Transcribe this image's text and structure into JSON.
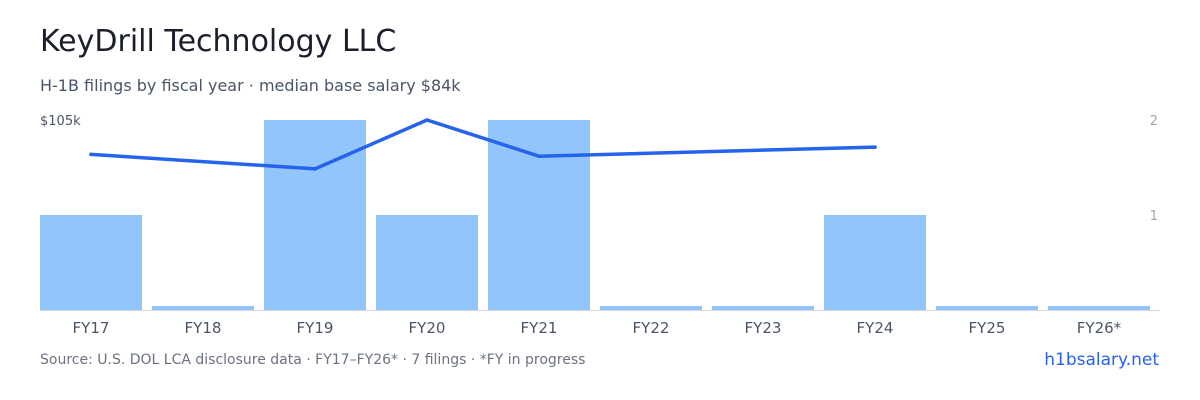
{
  "title": "KeyDrill Technology LLC",
  "subtitle": "H-1B filings by fiscal year · median base salary $84k",
  "footer": "Source: U.S. DOL LCA disclosure data · FY17–FY26* · 7 filings · *FY in progress",
  "site": "h1bsalary.net",
  "colors": {
    "bar": "#93c5fd",
    "line": "#2563eb",
    "axis_text": "#9ca3af",
    "tick_text": "#4b5563",
    "baseline": "#d1d5db"
  },
  "chart_data": {
    "type": "bar",
    "categories": [
      "FY17",
      "FY18",
      "FY19",
      "FY20",
      "FY21",
      "FY22",
      "FY23",
      "FY24",
      "FY25",
      "FY26*"
    ],
    "series": [
      {
        "type": "bar",
        "axis": "right",
        "values": [
          1,
          0,
          2,
          1,
          2,
          0,
          0,
          1,
          0,
          0
        ]
      },
      {
        "type": "line",
        "axis": "left",
        "values": [
          86000,
          null,
          78000,
          105000,
          85000,
          null,
          null,
          90000,
          null,
          null
        ]
      }
    ],
    "left_axis": {
      "ylim": [
        0,
        105000
      ],
      "top_label": "$105k"
    },
    "right_axis": {
      "ylim": [
        0,
        2
      ],
      "ticks": [
        "1",
        "2"
      ]
    },
    "legend": "none",
    "grid": false
  }
}
